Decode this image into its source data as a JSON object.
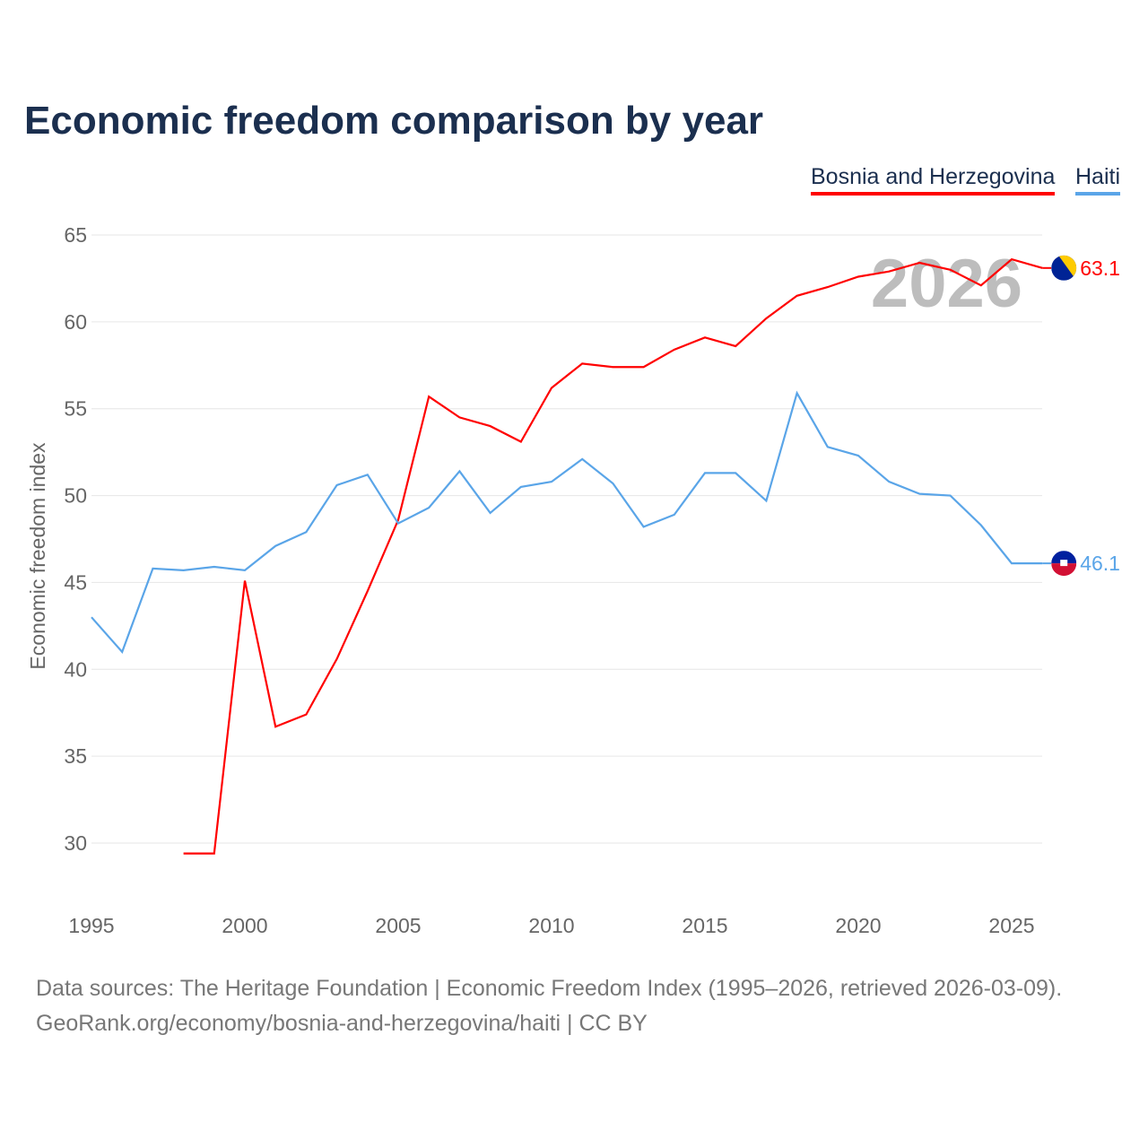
{
  "chart_data": {
    "type": "line",
    "title": "Economic freedom comparison by year",
    "ylabel": "Economic freedom index",
    "xlabel": "",
    "ylim": [
      26,
      67
    ],
    "xlim": [
      1995,
      2026
    ],
    "yticks": [
      30,
      35,
      40,
      45,
      50,
      55,
      60,
      65
    ],
    "xticks": [
      1995,
      2000,
      2005,
      2010,
      2015,
      2020,
      2025
    ],
    "grid": true,
    "legend_position": "top-right",
    "watermark_year": "2026",
    "series": [
      {
        "name": "Bosnia and Herzegovina",
        "color": "#ff0000",
        "end_label": "63.1",
        "flag": "bosnia-flag",
        "x": [
          1998,
          1999,
          2000,
          2001,
          2002,
          2003,
          2004,
          2005,
          2006,
          2007,
          2008,
          2009,
          2010,
          2011,
          2012,
          2013,
          2014,
          2015,
          2016,
          2017,
          2018,
          2019,
          2020,
          2021,
          2022,
          2023,
          2024,
          2025,
          2026
        ],
        "values": [
          29.4,
          29.4,
          45.1,
          36.7,
          37.4,
          40.6,
          44.5,
          48.6,
          55.7,
          54.5,
          54.0,
          53.1,
          56.2,
          57.6,
          57.4,
          57.4,
          58.4,
          59.1,
          58.6,
          60.2,
          61.5,
          62.0,
          62.6,
          62.9,
          63.4,
          63.0,
          62.1,
          63.6,
          63.1
        ]
      },
      {
        "name": "Haiti",
        "color": "#5aa5e8",
        "end_label": "46.1",
        "flag": "haiti-flag",
        "x": [
          1995,
          1996,
          1997,
          1998,
          1999,
          2000,
          2001,
          2002,
          2003,
          2004,
          2005,
          2006,
          2007,
          2008,
          2009,
          2010,
          2011,
          2012,
          2013,
          2014,
          2015,
          2016,
          2017,
          2018,
          2019,
          2020,
          2021,
          2022,
          2023,
          2024,
          2025,
          2026
        ],
        "values": [
          43.0,
          41.0,
          45.8,
          45.7,
          45.9,
          45.7,
          47.1,
          47.9,
          50.6,
          51.2,
          48.4,
          49.3,
          51.4,
          49.0,
          50.5,
          50.8,
          52.1,
          50.7,
          48.2,
          48.9,
          51.3,
          51.3,
          49.7,
          55.9,
          52.8,
          52.3,
          50.8,
          50.1,
          50.0,
          48.3,
          46.1,
          46.1
        ]
      }
    ]
  },
  "footer": {
    "line1": "Data sources: The Heritage Foundation | Economic Freedom Index (1995–2026, retrieved 2026-03-09).",
    "line2": "GeoRank.org/economy/bosnia-and-herzegovina/haiti | CC BY"
  }
}
